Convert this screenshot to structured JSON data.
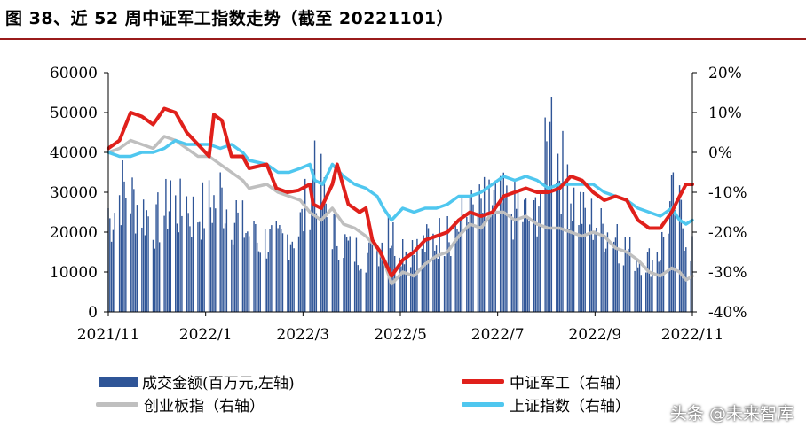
{
  "title": "图 38、近 52 周中证军工指数走势（截至 20221101）",
  "watermark": "头条 @未来智库",
  "chart_data": {
    "type": "bar+line",
    "title": "图 38、近 52 周中证军工指数走势（截至 20221101）",
    "x_ticks": [
      "2021/11",
      "2022/1",
      "2022/3",
      "2022/5",
      "2022/7",
      "2022/9",
      "2022/11"
    ],
    "x_range": [
      "2021-11-01",
      "2022-11-01"
    ],
    "y_left": {
      "min": 0,
      "max": 60000,
      "ticks": [
        "0",
        "10000",
        "20000",
        "30000",
        "40000",
        "50000",
        "60000"
      ]
    },
    "y_right": {
      "min": -40,
      "max": 20,
      "ticks": [
        "-40%",
        "-30%",
        "-20%",
        "-10%",
        "0%",
        "10%",
        "20%"
      ]
    },
    "legend": {
      "turnover": "成交金额(百万元,左轴)",
      "military": "中证军工（右轴）",
      "chinext": "创业板指（右轴）",
      "sse": "上证指数（右轴）"
    },
    "colors": {
      "turnover": "#2f5597",
      "military": "#e0201b",
      "chinext": "#bfbfbf",
      "sse": "#4fc7ef"
    },
    "turnover_points": [
      [
        "2021-11-01",
        26000
      ],
      [
        "2021-11-10",
        38000
      ],
      [
        "2021-11-20",
        32000
      ],
      [
        "2021-12-01",
        27000
      ],
      [
        "2021-12-10",
        33000
      ],
      [
        "2021-12-20",
        29000
      ],
      [
        "2022-01-01",
        31000
      ],
      [
        "2022-01-10",
        35000
      ],
      [
        "2022-01-20",
        28000
      ],
      [
        "2022-02-01",
        22000
      ],
      [
        "2022-02-15",
        21000
      ],
      [
        "2022-03-01",
        25000
      ],
      [
        "2022-03-10",
        43000
      ],
      [
        "2022-03-20",
        26000
      ],
      [
        "2022-04-01",
        19000
      ],
      [
        "2022-04-15",
        17000
      ],
      [
        "2022-04-25",
        24000
      ],
      [
        "2022-05-10",
        18000
      ],
      [
        "2022-05-20",
        21000
      ],
      [
        "2022-06-01",
        24000
      ],
      [
        "2022-06-15",
        29000
      ],
      [
        "2022-07-01",
        33000
      ],
      [
        "2022-07-15",
        30000
      ],
      [
        "2022-07-25",
        28000
      ],
      [
        "2022-08-05",
        54000
      ],
      [
        "2022-08-15",
        37000
      ],
      [
        "2022-08-25",
        30000
      ],
      [
        "2022-09-05",
        26000
      ],
      [
        "2022-09-15",
        22000
      ],
      [
        "2022-09-25",
        17000
      ],
      [
        "2022-10-10",
        15000
      ],
      [
        "2022-10-20",
        35000
      ],
      [
        "2022-11-01",
        19000
      ]
    ],
    "series": [
      {
        "name": "中证军工（右轴）",
        "key": "military",
        "points": [
          [
            "2021-11-01",
            1
          ],
          [
            "2021-11-08",
            3
          ],
          [
            "2021-11-15",
            10
          ],
          [
            "2021-11-22",
            9
          ],
          [
            "2021-11-29",
            7
          ],
          [
            "2021-12-06",
            11
          ],
          [
            "2021-12-13",
            10
          ],
          [
            "2021-12-20",
            5
          ],
          [
            "2021-12-27",
            2
          ],
          [
            "2022-01-03",
            -1
          ],
          [
            "2022-01-06",
            9.5
          ],
          [
            "2022-01-11",
            8
          ],
          [
            "2022-01-17",
            -1
          ],
          [
            "2022-01-24",
            -1
          ],
          [
            "2022-01-28",
            -4
          ],
          [
            "2022-02-08",
            -3
          ],
          [
            "2022-02-14",
            -9
          ],
          [
            "2022-02-21",
            -10
          ],
          [
            "2022-02-28",
            -9.5
          ],
          [
            "2022-03-07",
            -8
          ],
          [
            "2022-03-09",
            -13
          ],
          [
            "2022-03-14",
            -14
          ],
          [
            "2022-03-21",
            -8
          ],
          [
            "2022-03-24",
            -3
          ],
          [
            "2022-03-31",
            -13
          ],
          [
            "2022-04-07",
            -15
          ],
          [
            "2022-04-11",
            -14
          ],
          [
            "2022-04-15",
            -22
          ],
          [
            "2022-04-20",
            -25
          ],
          [
            "2022-04-27",
            -31
          ],
          [
            "2022-05-04",
            -27
          ],
          [
            "2022-05-11",
            -25
          ],
          [
            "2022-05-18",
            -22
          ],
          [
            "2022-05-25",
            -21
          ],
          [
            "2022-06-01",
            -20
          ],
          [
            "2022-06-08",
            -17
          ],
          [
            "2022-06-15",
            -15
          ],
          [
            "2022-06-22",
            -16
          ],
          [
            "2022-06-29",
            -15
          ],
          [
            "2022-07-06",
            -11
          ],
          [
            "2022-07-13",
            -10
          ],
          [
            "2022-07-20",
            -9
          ],
          [
            "2022-07-27",
            -10
          ],
          [
            "2022-08-03",
            -10
          ],
          [
            "2022-08-10",
            -9
          ],
          [
            "2022-08-17",
            -6
          ],
          [
            "2022-08-24",
            -7
          ],
          [
            "2022-08-31",
            -10
          ],
          [
            "2022-09-07",
            -12
          ],
          [
            "2022-09-14",
            -11
          ],
          [
            "2022-09-21",
            -12
          ],
          [
            "2022-09-28",
            -17
          ],
          [
            "2022-10-05",
            -19
          ],
          [
            "2022-10-12",
            -19
          ],
          [
            "2022-10-19",
            -15
          ],
          [
            "2022-10-24",
            -11
          ],
          [
            "2022-10-28",
            -8
          ],
          [
            "2022-11-01",
            -8
          ]
        ]
      },
      {
        "name": "创业板指（右轴）",
        "key": "chinext",
        "points": [
          [
            "2021-11-01",
            0
          ],
          [
            "2021-11-08",
            1
          ],
          [
            "2021-11-15",
            3
          ],
          [
            "2021-11-22",
            2
          ],
          [
            "2021-11-29",
            1
          ],
          [
            "2021-12-06",
            4
          ],
          [
            "2021-12-13",
            3
          ],
          [
            "2021-12-20",
            1
          ],
          [
            "2021-12-27",
            -1
          ],
          [
            "2022-01-03",
            -1
          ],
          [
            "2022-01-10",
            -3
          ],
          [
            "2022-01-17",
            -5
          ],
          [
            "2022-01-24",
            -7
          ],
          [
            "2022-01-28",
            -9
          ],
          [
            "2022-02-08",
            -8
          ],
          [
            "2022-02-15",
            -10
          ],
          [
            "2022-02-22",
            -11
          ],
          [
            "2022-03-01",
            -12
          ],
          [
            "2022-03-07",
            -15
          ],
          [
            "2022-03-14",
            -17
          ],
          [
            "2022-03-21",
            -14
          ],
          [
            "2022-03-28",
            -18
          ],
          [
            "2022-04-04",
            -19
          ],
          [
            "2022-04-11",
            -21
          ],
          [
            "2022-04-18",
            -24
          ],
          [
            "2022-04-22",
            -27
          ],
          [
            "2022-04-27",
            -33
          ],
          [
            "2022-05-04",
            -30
          ],
          [
            "2022-05-11",
            -31
          ],
          [
            "2022-05-18",
            -28
          ],
          [
            "2022-05-25",
            -26
          ],
          [
            "2022-06-01",
            -25
          ],
          [
            "2022-06-08",
            -21
          ],
          [
            "2022-06-15",
            -18
          ],
          [
            "2022-06-22",
            -19
          ],
          [
            "2022-06-29",
            -15
          ],
          [
            "2022-07-06",
            -15
          ],
          [
            "2022-07-13",
            -17
          ],
          [
            "2022-07-20",
            -16
          ],
          [
            "2022-07-27",
            -18
          ],
          [
            "2022-08-03",
            -19
          ],
          [
            "2022-08-10",
            -19
          ],
          [
            "2022-08-17",
            -20
          ],
          [
            "2022-08-24",
            -21
          ],
          [
            "2022-08-31",
            -20
          ],
          [
            "2022-09-07",
            -21
          ],
          [
            "2022-09-14",
            -24
          ],
          [
            "2022-09-21",
            -25
          ],
          [
            "2022-09-28",
            -27
          ],
          [
            "2022-10-05",
            -30
          ],
          [
            "2022-10-12",
            -31
          ],
          [
            "2022-10-19",
            -29
          ],
          [
            "2022-10-24",
            -30
          ],
          [
            "2022-10-28",
            -32
          ],
          [
            "2022-11-01",
            -31
          ]
        ]
      },
      {
        "name": "上证指数（右轴）",
        "key": "sse",
        "points": [
          [
            "2021-11-01",
            0
          ],
          [
            "2021-11-08",
            -1
          ],
          [
            "2021-11-15",
            -1
          ],
          [
            "2021-11-22",
            0
          ],
          [
            "2021-11-29",
            0
          ],
          [
            "2021-12-06",
            1
          ],
          [
            "2021-12-13",
            3
          ],
          [
            "2021-12-20",
            2
          ],
          [
            "2021-12-27",
            2
          ],
          [
            "2022-01-03",
            2
          ],
          [
            "2022-01-10",
            1
          ],
          [
            "2022-01-17",
            2
          ],
          [
            "2022-01-24",
            0
          ],
          [
            "2022-01-28",
            -2
          ],
          [
            "2022-02-08",
            -3
          ],
          [
            "2022-02-15",
            -5
          ],
          [
            "2022-02-22",
            -5
          ],
          [
            "2022-03-01",
            -4
          ],
          [
            "2022-03-07",
            -3
          ],
          [
            "2022-03-10",
            -7
          ],
          [
            "2022-03-15",
            -8
          ],
          [
            "2022-03-21",
            -3
          ],
          [
            "2022-03-28",
            -6
          ],
          [
            "2022-04-04",
            -8
          ],
          [
            "2022-04-11",
            -9
          ],
          [
            "2022-04-18",
            -11
          ],
          [
            "2022-04-22",
            -14
          ],
          [
            "2022-04-27",
            -17
          ],
          [
            "2022-05-04",
            -14
          ],
          [
            "2022-05-11",
            -15
          ],
          [
            "2022-05-18",
            -14
          ],
          [
            "2022-05-25",
            -14
          ],
          [
            "2022-06-01",
            -13
          ],
          [
            "2022-06-08",
            -11
          ],
          [
            "2022-06-15",
            -11
          ],
          [
            "2022-06-22",
            -10
          ],
          [
            "2022-06-29",
            -8
          ],
          [
            "2022-07-06",
            -6
          ],
          [
            "2022-07-13",
            -7
          ],
          [
            "2022-07-20",
            -6
          ],
          [
            "2022-07-27",
            -7
          ],
          [
            "2022-08-03",
            -9
          ],
          [
            "2022-08-10",
            -8
          ],
          [
            "2022-08-17",
            -8
          ],
          [
            "2022-08-24",
            -8
          ],
          [
            "2022-08-31",
            -8
          ],
          [
            "2022-09-07",
            -10
          ],
          [
            "2022-09-14",
            -11
          ],
          [
            "2022-09-21",
            -12
          ],
          [
            "2022-09-28",
            -14
          ],
          [
            "2022-10-05",
            -15
          ],
          [
            "2022-10-12",
            -16
          ],
          [
            "2022-10-19",
            -14
          ],
          [
            "2022-10-24",
            -17
          ],
          [
            "2022-10-28",
            -18
          ],
          [
            "2022-11-01",
            -17
          ]
        ]
      }
    ]
  }
}
